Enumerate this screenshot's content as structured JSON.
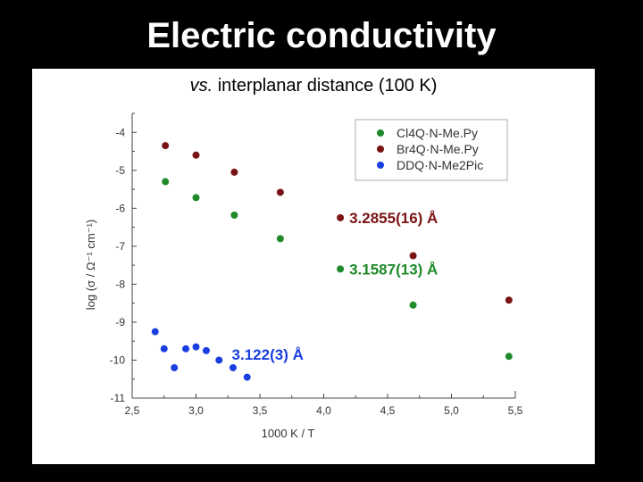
{
  "slide": {
    "title": "Electric conductivity",
    "subtitle_prefix": "vs.",
    "subtitle_rest": " interplanar distance (100 K)"
  },
  "colors": {
    "background": "#000000",
    "panel": "#ffffff",
    "green": "#1f8a2a",
    "darkred": "#7a1414",
    "blue": "#1a3fe0"
  },
  "chart_data": {
    "type": "scatter",
    "xlabel": "1000 K / T",
    "ylabel": "log (σ / Ω⁻¹ cm⁻¹)",
    "xlim": [
      2.5,
      5.5
    ],
    "ylim": [
      -11,
      -3.5
    ],
    "xticks": [
      "2,5",
      "3,0",
      "3,5",
      "4,0",
      "4,5",
      "5,0",
      "5,5"
    ],
    "yticks": [
      "-4",
      "-5",
      "-6",
      "-7",
      "-8",
      "-9",
      "-10",
      "-11"
    ],
    "legend_position": "top-right",
    "series": [
      {
        "name": "Cl4Q·N-Me.Py",
        "color_key": "green",
        "points": [
          [
            2.76,
            -5.3
          ],
          [
            3.0,
            -5.72
          ],
          [
            3.3,
            -6.18
          ],
          [
            3.66,
            -6.8
          ],
          [
            4.7,
            -8.55
          ],
          [
            5.45,
            -9.9
          ]
        ]
      },
      {
        "name": "Br4Q·N-Me.Py",
        "color_key": "darkred",
        "points": [
          [
            2.76,
            -4.35
          ],
          [
            3.0,
            -4.6
          ],
          [
            3.3,
            -5.05
          ],
          [
            3.66,
            -5.58
          ],
          [
            4.7,
            -7.25
          ],
          [
            5.45,
            -8.42
          ]
        ]
      },
      {
        "name": "DDQ·N-Me2Pic",
        "color_key": "blue",
        "points": [
          [
            2.68,
            -9.25
          ],
          [
            2.75,
            -9.7
          ],
          [
            2.83,
            -10.2
          ],
          [
            2.92,
            -9.7
          ],
          [
            3.0,
            -9.65
          ],
          [
            3.08,
            -9.75
          ],
          [
            3.18,
            -10.0
          ],
          [
            3.29,
            -10.2
          ],
          [
            3.4,
            -10.45
          ]
        ]
      }
    ],
    "annotations": [
      {
        "text": "3.2855(16) Å",
        "color_key": "darkred",
        "marker": [
          4.13,
          -6.25
        ],
        "text_at": [
          4.2,
          -6.25
        ]
      },
      {
        "text": "3.1587(13) Å",
        "color_key": "green",
        "marker": [
          4.13,
          -7.6
        ],
        "text_at": [
          4.2,
          -7.6
        ]
      },
      {
        "text": "3.122(3) Å",
        "color_key": "blue",
        "marker": null,
        "text_at": [
          3.28,
          -9.85
        ]
      }
    ]
  }
}
